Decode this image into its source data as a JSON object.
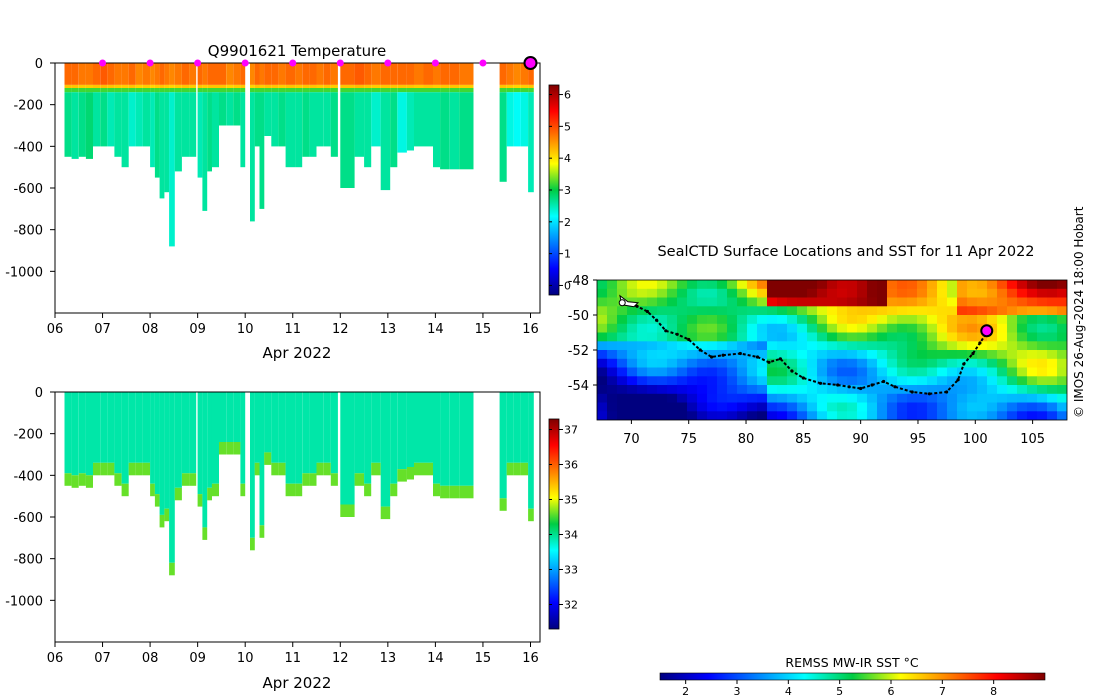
{
  "colors": {
    "axis": "#000000",
    "marker": "#ff00ff",
    "track": "#000000"
  },
  "chart_data": [
    {
      "id": "temperature",
      "type": "heatmap",
      "title": "Q9901621  Temperature",
      "xlabel": "Apr 2022",
      "xticks": [
        "06",
        "07",
        "08",
        "09",
        "10",
        "11",
        "12",
        "13",
        "14",
        "15",
        "16"
      ],
      "xlim": [
        6.2,
        16.1
      ],
      "yticks": [
        0,
        -200,
        -400,
        -600,
        -800,
        -1000
      ],
      "ylim": [
        -1200,
        0
      ],
      "colorbar": {
        "min": -0.3,
        "max": 6.3,
        "ticks": [
          0,
          1,
          2,
          3,
          4,
          5,
          6
        ],
        "palette": "jet"
      },
      "surface_markers": [
        7,
        8,
        9,
        10,
        11,
        12,
        13,
        14,
        15
      ],
      "latest_marker": 16,
      "profiles": [
        {
          "x": 6.2,
          "w": 0.15,
          "depth": 450,
          "surf": 4.8,
          "mid": 2.7
        },
        {
          "x": 6.35,
          "w": 0.15,
          "depth": 460,
          "surf": 4.8,
          "mid": 2.6
        },
        {
          "x": 6.5,
          "w": 0.15,
          "depth": 450,
          "surf": 4.7,
          "mid": 2.7
        },
        {
          "x": 6.65,
          "w": 0.15,
          "depth": 460,
          "surf": 4.7,
          "mid": 2.8
        },
        {
          "x": 6.8,
          "w": 0.15,
          "depth": 400,
          "surf": 4.8,
          "mid": 2.6
        },
        {
          "x": 6.95,
          "w": 0.15,
          "depth": 400,
          "surf": 4.9,
          "mid": 2.7
        },
        {
          "x": 7.1,
          "w": 0.15,
          "depth": 400,
          "surf": 4.8,
          "mid": 2.5
        },
        {
          "x": 7.25,
          "w": 0.15,
          "depth": 450,
          "surf": 4.7,
          "mid": 2.6
        },
        {
          "x": 7.4,
          "w": 0.15,
          "depth": 500,
          "surf": 4.7,
          "mid": 2.6
        },
        {
          "x": 7.55,
          "w": 0.15,
          "depth": 400,
          "surf": 4.8,
          "mid": 2.4
        },
        {
          "x": 7.7,
          "w": 0.15,
          "depth": 400,
          "surf": 4.6,
          "mid": 2.5
        },
        {
          "x": 7.85,
          "w": 0.15,
          "depth": 400,
          "surf": 4.7,
          "mid": 2.6
        },
        {
          "x": 8.0,
          "w": 0.1,
          "depth": 500,
          "surf": 4.6,
          "mid": 2.5
        },
        {
          "x": 8.1,
          "w": 0.1,
          "depth": 550,
          "surf": 4.7,
          "mid": 2.7
        },
        {
          "x": 8.2,
          "w": 0.1,
          "depth": 650,
          "surf": 4.8,
          "mid": 2.6
        },
        {
          "x": 8.3,
          "w": 0.1,
          "depth": 620,
          "surf": 4.7,
          "mid": 2.6
        },
        {
          "x": 8.4,
          "w": 0.12,
          "depth": 880,
          "surf": 4.6,
          "mid": 2.4
        },
        {
          "x": 8.52,
          "w": 0.15,
          "depth": 520,
          "surf": 4.7,
          "mid": 2.6
        },
        {
          "x": 8.67,
          "w": 0.15,
          "depth": 450,
          "surf": 4.8,
          "mid": 2.6
        },
        {
          "x": 8.82,
          "w": 0.15,
          "depth": 450,
          "surf": 4.7,
          "mid": 2.6
        },
        {
          "x": 9.0,
          "w": 0.1,
          "depth": 550,
          "surf": 4.8,
          "mid": 2.5
        },
        {
          "x": 9.1,
          "w": 0.1,
          "depth": 710,
          "surf": 4.7,
          "mid": 2.6
        },
        {
          "x": 9.2,
          "w": 0.1,
          "depth": 520,
          "surf": 4.8,
          "mid": 2.7
        },
        {
          "x": 9.3,
          "w": 0.15,
          "depth": 500,
          "surf": 4.8,
          "mid": 2.6
        },
        {
          "x": 9.45,
          "w": 0.15,
          "depth": 300,
          "surf": 4.8,
          "mid": 2.7
        },
        {
          "x": 9.6,
          "w": 0.15,
          "depth": 300,
          "surf": 4.6,
          "mid": 2.6
        },
        {
          "x": 9.75,
          "w": 0.15,
          "depth": 300,
          "surf": 4.7,
          "mid": 2.7
        },
        {
          "x": 9.9,
          "w": 0.1,
          "depth": 500,
          "surf": 4.8,
          "mid": 2.6
        },
        {
          "x": 10.1,
          "w": 0.1,
          "depth": 760,
          "surf": 4.6,
          "mid": 2.6
        },
        {
          "x": 10.2,
          "w": 0.1,
          "depth": 400,
          "surf": 4.8,
          "mid": 2.7
        },
        {
          "x": 10.3,
          "w": 0.1,
          "depth": 700,
          "surf": 4.7,
          "mid": 2.7
        },
        {
          "x": 10.4,
          "w": 0.15,
          "depth": 350,
          "surf": 4.8,
          "mid": 2.6
        },
        {
          "x": 10.55,
          "w": 0.15,
          "depth": 400,
          "surf": 4.8,
          "mid": 2.6
        },
        {
          "x": 10.7,
          "w": 0.15,
          "depth": 400,
          "surf": 4.7,
          "mid": 2.7
        },
        {
          "x": 10.85,
          "w": 0.2,
          "depth": 500,
          "surf": 4.8,
          "mid": 2.6
        },
        {
          "x": 11.05,
          "w": 0.15,
          "depth": 500,
          "surf": 4.7,
          "mid": 2.6
        },
        {
          "x": 11.2,
          "w": 0.15,
          "depth": 450,
          "surf": 4.8,
          "mid": 2.7
        },
        {
          "x": 11.35,
          "w": 0.15,
          "depth": 450,
          "surf": 4.8,
          "mid": 2.6
        },
        {
          "x": 11.5,
          "w": 0.15,
          "depth": 400,
          "surf": 4.7,
          "mid": 2.6
        },
        {
          "x": 11.65,
          "w": 0.15,
          "depth": 400,
          "surf": 4.8,
          "mid": 2.6
        },
        {
          "x": 11.8,
          "w": 0.15,
          "depth": 450,
          "surf": 4.7,
          "mid": 2.7
        },
        {
          "x": 12.0,
          "w": 0.3,
          "depth": 600,
          "surf": 4.8,
          "mid": 2.7
        },
        {
          "x": 12.3,
          "w": 0.2,
          "depth": 450,
          "surf": 4.9,
          "mid": 2.6
        },
        {
          "x": 12.5,
          "w": 0.15,
          "depth": 500,
          "surf": 4.8,
          "mid": 2.6
        },
        {
          "x": 12.65,
          "w": 0.2,
          "depth": 400,
          "surf": 4.7,
          "mid": 2.4
        },
        {
          "x": 12.85,
          "w": 0.2,
          "depth": 610,
          "surf": 4.8,
          "mid": 2.6
        },
        {
          "x": 13.05,
          "w": 0.15,
          "depth": 500,
          "surf": 4.8,
          "mid": 2.7
        },
        {
          "x": 13.2,
          "w": 0.2,
          "depth": 430,
          "surf": 4.8,
          "mid": 2.3
        },
        {
          "x": 13.4,
          "w": 0.15,
          "depth": 420,
          "surf": 4.8,
          "mid": 2.5
        },
        {
          "x": 13.55,
          "w": 0.2,
          "depth": 400,
          "surf": 4.7,
          "mid": 2.6
        },
        {
          "x": 13.75,
          "w": 0.2,
          "depth": 400,
          "surf": 4.8,
          "mid": 2.6
        },
        {
          "x": 13.95,
          "w": 0.15,
          "depth": 500,
          "surf": 4.7,
          "mid": 2.6
        },
        {
          "x": 14.1,
          "w": 0.2,
          "depth": 510,
          "surf": 4.8,
          "mid": 2.7
        },
        {
          "x": 14.3,
          "w": 0.2,
          "depth": 510,
          "surf": 4.8,
          "mid": 2.6
        },
        {
          "x": 14.5,
          "w": 0.3,
          "depth": 510,
          "surf": 4.7,
          "mid": 2.7
        },
        {
          "x": 15.35,
          "w": 0.15,
          "depth": 570,
          "surf": 4.8,
          "mid": 2.7
        },
        {
          "x": 15.5,
          "w": 0.15,
          "depth": 400,
          "surf": 4.7,
          "mid": 2.3
        },
        {
          "x": 15.65,
          "w": 0.15,
          "depth": 400,
          "surf": 4.6,
          "mid": 2.2
        },
        {
          "x": 15.8,
          "w": 0.15,
          "depth": 400,
          "surf": 4.7,
          "mid": 2.3
        },
        {
          "x": 15.95,
          "w": 0.12,
          "depth": 620,
          "surf": 4.8,
          "mid": 2.5
        }
      ]
    },
    {
      "id": "salinity",
      "type": "heatmap",
      "title": "",
      "xlabel": "Apr 2022",
      "xticks": [
        "06",
        "07",
        "08",
        "09",
        "10",
        "11",
        "12",
        "13",
        "14",
        "15",
        "16"
      ],
      "xlim": [
        6.2,
        16.1
      ],
      "yticks": [
        0,
        -200,
        -400,
        -600,
        -800,
        -1000
      ],
      "ylim": [
        -1200,
        0
      ],
      "colorbar": {
        "min": 31.3,
        "max": 37.3,
        "ticks": [
          32,
          33,
          34,
          35,
          36,
          37
        ],
        "palette": "jet"
      },
      "surface_value": 33.9,
      "deep_value": 34.6
    },
    {
      "id": "sst-map",
      "type": "heatmap",
      "title": "SealCTD Surface Locations and SST for 11 Apr 2022",
      "xticks": [
        70,
        75,
        80,
        85,
        90,
        95,
        100,
        105
      ],
      "xlim": [
        67,
        108
      ],
      "yticks": [
        -48,
        -50,
        -52,
        -54
      ],
      "ylim": [
        -56,
        -48
      ],
      "colorbar": {
        "label": "REMSS MW-IR SST °C",
        "min": 1.5,
        "max": 9.0,
        "ticks": [
          2,
          3,
          4,
          5,
          6,
          7,
          8
        ],
        "palette": "jet"
      },
      "track": [
        [
          69.2,
          -49.1
        ],
        [
          69.8,
          -49.4
        ],
        [
          70.5,
          -49.5
        ],
        [
          71.4,
          -49.8
        ],
        [
          72.2,
          -50.3
        ],
        [
          73.0,
          -50.9
        ],
        [
          74.0,
          -51.1
        ],
        [
          75.0,
          -51.4
        ],
        [
          76.0,
          -52.0
        ],
        [
          77.0,
          -52.4
        ],
        [
          78.0,
          -52.3
        ],
        [
          79.5,
          -52.2
        ],
        [
          81.0,
          -52.4
        ],
        [
          82.0,
          -52.7
        ],
        [
          83.0,
          -52.5
        ],
        [
          84.0,
          -53.2
        ],
        [
          85.0,
          -53.6
        ],
        [
          86.5,
          -53.9
        ],
        [
          88.0,
          -54.0
        ],
        [
          89.0,
          -54.1
        ],
        [
          90.0,
          -54.2
        ],
        [
          91.0,
          -54.0
        ],
        [
          92.0,
          -53.8
        ],
        [
          93.0,
          -54.1
        ],
        [
          94.5,
          -54.4
        ],
        [
          96.0,
          -54.5
        ],
        [
          97.5,
          -54.4
        ],
        [
          98.5,
          -53.7
        ],
        [
          99.0,
          -52.8
        ],
        [
          99.8,
          -52.2
        ],
        [
          100.4,
          -51.6
        ],
        [
          101.0,
          -51.0
        ]
      ],
      "start": [
        69.2,
        -49.3
      ],
      "latest": [
        101.0,
        -50.9
      ]
    }
  ],
  "credit": "© IMOS 26-Aug-2024 18:00 Hobart"
}
